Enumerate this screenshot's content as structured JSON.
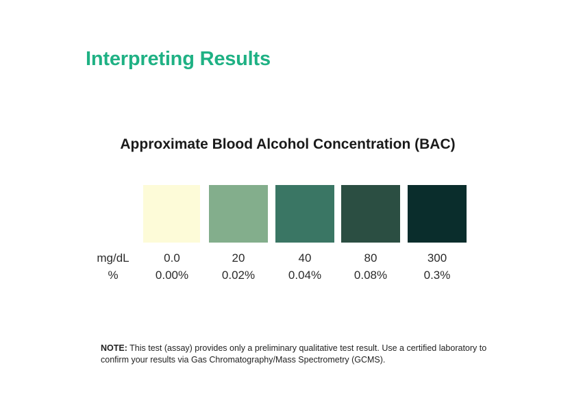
{
  "page": {
    "title": "Interpreting Results",
    "title_color": "#1fb184"
  },
  "chart": {
    "title": "Approximate Blood Alcohol Concentration (BAC)",
    "row_labels": {
      "mgdl": "mg/dL",
      "percent": "%"
    },
    "levels": [
      {
        "color": "#fdfbd8",
        "mgdl": "0.0",
        "percent": "0.00%"
      },
      {
        "color": "#83ae8c",
        "mgdl": "20",
        "percent": "0.02%"
      },
      {
        "color": "#3a7664",
        "mgdl": "40",
        "percent": "0.04%"
      },
      {
        "color": "#2b4e42",
        "mgdl": "80",
        "percent": "0.08%"
      },
      {
        "color": "#0a2d2c",
        "mgdl": "300",
        "percent": "0.3%"
      }
    ]
  },
  "note": {
    "label": "NOTE:",
    "text": " This test (assay) provides only a preliminary qualitative test result. Use a certified laboratory to confirm your results via Gas Chromatography/Mass Spectrometry (GCMS)."
  }
}
